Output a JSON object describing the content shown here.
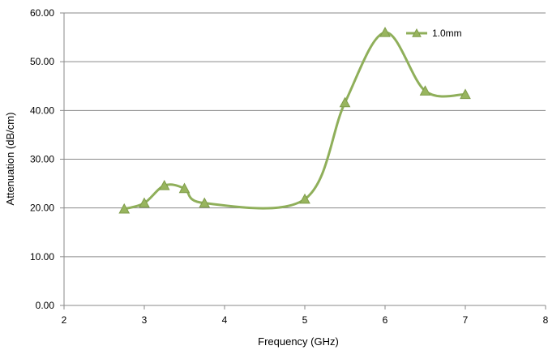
{
  "chart_data": {
    "type": "line",
    "title": "",
    "xlabel": "Frequency (GHz)",
    "ylabel": "Attenuation (dB/cm)",
    "xlim": [
      2,
      8
    ],
    "ylim": [
      0,
      60
    ],
    "x_ticks": [
      2,
      3,
      4,
      5,
      6,
      7,
      8
    ],
    "y_ticks": [
      0,
      10,
      20,
      30,
      40,
      50,
      60
    ],
    "y_tick_labels": [
      "0.00",
      "10.00",
      "20.00",
      "30.00",
      "40.00",
      "50.00",
      "60.00"
    ],
    "grid": "horizontal",
    "smooth": true,
    "legend_position": "top-right",
    "series": [
      {
        "name": "1.0mm",
        "color": "#8faf5a",
        "marker": "triangle",
        "x": [
          2.75,
          3.0,
          3.25,
          3.5,
          3.75,
          5.0,
          5.5,
          6.0,
          6.5,
          7.0
        ],
        "y": [
          19.8,
          21.0,
          24.6,
          24.0,
          21.0,
          21.8,
          41.6,
          56.0,
          44.0,
          43.3
        ]
      }
    ]
  }
}
